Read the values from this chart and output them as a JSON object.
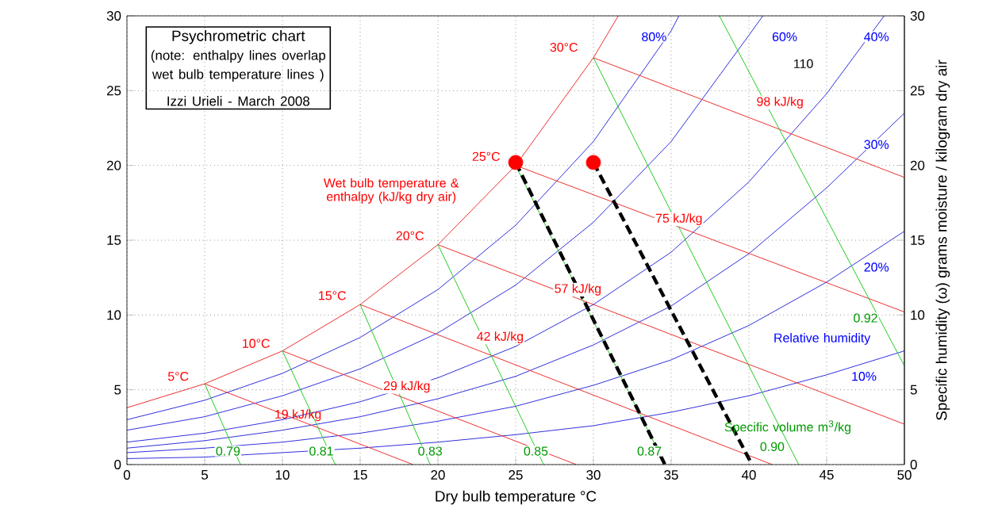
{
  "chart_data": {
    "type": "line",
    "title": "Psychrometric chart",
    "subtitle": "(note: enthalpy lines overlap wet bulb temperature lines )",
    "xlabel": "Dry bulb temperature °C",
    "y2label": "Specific humidity (ω) grams moisture / kilogram dry air",
    "xlim": [
      0,
      50
    ],
    "xticks": [
      0,
      5,
      10,
      15,
      20,
      25,
      30,
      35,
      40,
      45,
      50
    ],
    "ylim": [
      0,
      30
    ],
    "yticks": [
      0,
      5,
      10,
      15,
      20,
      25,
      30
    ],
    "y2lim": [
      0,
      30
    ],
    "y2ticks": [
      0,
      5,
      10,
      15,
      20,
      25,
      30
    ],
    "grid": true,
    "marker": "none",
    "series": [
      {
        "color": "#ee3030",
        "x": [
          0,
          5,
          10,
          15,
          20,
          25,
          30,
          31.6
        ],
        "values": [
          3.8,
          5.4,
          7.6,
          10.7,
          14.7,
          20.0,
          27.2,
          30
        ]
      },
      {
        "color": "#3030dd",
        "x": [
          0,
          5,
          10,
          15,
          20,
          25,
          30,
          35,
          35.5
        ],
        "values": [
          3.0,
          4.3,
          6.1,
          8.5,
          11.7,
          16.0,
          21.6,
          29,
          30
        ]
      },
      {
        "color": "#3030dd",
        "x": [
          0,
          5,
          10,
          15,
          20,
          25,
          30,
          35,
          40,
          40.9
        ],
        "values": [
          2.3,
          3.2,
          4.6,
          6.4,
          8.8,
          12.0,
          16.2,
          21.6,
          28.7,
          30
        ]
      },
      {
        "color": "#3030dd",
        "x": [
          0,
          5,
          10,
          15,
          20,
          25,
          30,
          35,
          40,
          45,
          48.7
        ],
        "values": [
          1.5,
          2.1,
          3.0,
          4.2,
          5.8,
          7.9,
          10.7,
          14.2,
          18.9,
          24.8,
          30
        ]
      },
      {
        "color": "#3030dd",
        "x": [
          0,
          5,
          10,
          15,
          20,
          25,
          30,
          35,
          40,
          45,
          50
        ],
        "values": [
          1.1,
          1.6,
          2.3,
          3.2,
          4.4,
          5.9,
          8.0,
          10.6,
          14.1,
          18.5,
          23.5
        ]
      },
      {
        "color": "#3030dd",
        "x": [
          0,
          5,
          10,
          15,
          20,
          25,
          30,
          35,
          40,
          45,
          50
        ],
        "values": [
          0.8,
          1.1,
          1.5,
          2.1,
          2.9,
          3.9,
          5.3,
          7.0,
          9.3,
          12.2,
          15.6
        ]
      },
      {
        "color": "#3030dd",
        "x": [
          0,
          5,
          10,
          15,
          20,
          25,
          30,
          35,
          40,
          45,
          50
        ],
        "values": [
          0.4,
          0.5,
          0.8,
          1.1,
          1.5,
          2.0,
          2.6,
          3.5,
          4.6,
          6.0,
          7.6
        ]
      },
      {
        "color": "#ee3030",
        "x": [
          5,
          18.4
        ],
        "values": [
          5.4,
          0
        ]
      },
      {
        "color": "#ee3030",
        "x": [
          10,
          28.9
        ],
        "values": [
          7.6,
          0
        ]
      },
      {
        "color": "#ee3030",
        "x": [
          15,
          41.5
        ],
        "values": [
          10.7,
          0
        ]
      },
      {
        "color": "#ee3030",
        "x": [
          20,
          50
        ],
        "values": [
          14.7,
          2.7
        ]
      },
      {
        "color": "#ee3030",
        "x": [
          25,
          50
        ],
        "values": [
          20.0,
          10.2
        ]
      },
      {
        "color": "#ee3030",
        "x": [
          30,
          50
        ],
        "values": [
          27.2,
          19.2
        ]
      },
      {
        "color": "#22cc22",
        "x": [
          5,
          7.3
        ],
        "values": [
          5.4,
          0
        ]
      },
      {
        "color": "#22cc22",
        "x": [
          10,
          13.4
        ],
        "values": [
          7.6,
          0
        ]
      },
      {
        "color": "#22cc22",
        "x": [
          15,
          19.5
        ],
        "values": [
          10.7,
          0
        ]
      },
      {
        "color": "#22cc22",
        "x": [
          20,
          26.8
        ],
        "values": [
          14.7,
          0
        ]
      },
      {
        "color": "#22cc22",
        "x": [
          25,
          34.6
        ],
        "values": [
          20.0,
          0
        ]
      },
      {
        "color": "#22cc22",
        "x": [
          30,
          43.2
        ],
        "values": [
          27.2,
          0
        ]
      },
      {
        "color": "#22cc22",
        "x": [
          38.1,
          50
        ],
        "values": [
          30,
          6.6
        ]
      },
      {
        "color": "#000000",
        "x": [
          25,
          34.6
        ],
        "values": [
          20.2,
          0
        ],
        "line_style": "dashed"
      },
      {
        "color": "#000000",
        "x": [
          30,
          40.2
        ],
        "values": [
          20.2,
          0
        ],
        "line_style": "dashed"
      },
      {
        "type": "scatter",
        "color": "#ff0000",
        "marker": "circle",
        "x": [
          25,
          30
        ],
        "values": [
          20.2,
          20.2
        ]
      }
    ],
    "annotations": [
      "Izzi Urieli - March 2008",
      "Wet bulb temperature & enthalpy (kJ/kg dry air)",
      "Relative humidity",
      "Specific volume m$^{3}$/kg",
      "5°C",
      "10°C",
      "15°C",
      "20°C",
      "25°C",
      "30°C",
      "80%",
      "60%",
      "40%",
      "30%",
      "20%",
      "10%",
      "19 kJ/kg",
      "29 kJ/kg",
      "42 kJ/kg",
      "57 kJ/kg",
      "75 kJ/kg",
      "98 kJ/kg",
      "110",
      "0.79",
      "0.81",
      "0.83",
      "0.85",
      "0.87",
      "0.90",
      "0.92"
    ]
  }
}
